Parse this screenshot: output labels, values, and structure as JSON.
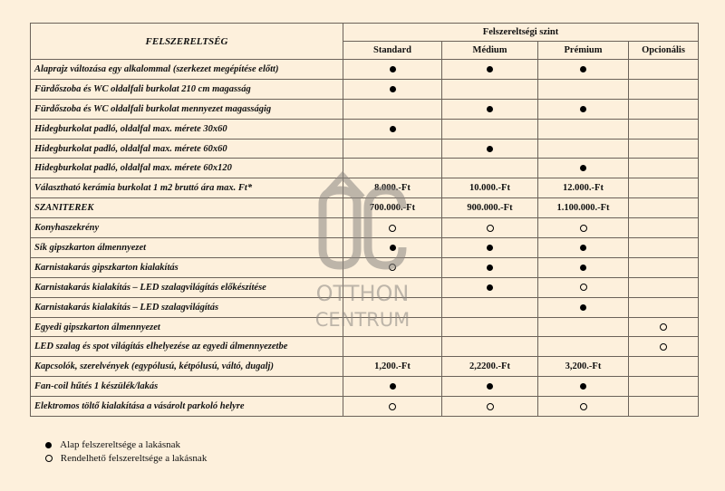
{
  "header": {
    "feature_col": "FELSZERELTSÉG",
    "group": "Felszereltségi szint",
    "levels": [
      "Standard",
      "Médium",
      "Prémium",
      "Opcionális"
    ]
  },
  "rows": [
    {
      "label": "Alaprajz változása egy alkalommal (szerkezet megépítése előtt)",
      "cells": [
        "filled",
        "filled",
        "filled",
        ""
      ]
    },
    {
      "label": "Fürdőszoba és WC oldalfali burkolat 210 cm magasság",
      "cells": [
        "filled",
        "",
        "",
        ""
      ]
    },
    {
      "label": "Fürdőszoba és WC oldalfali burkolat mennyezet magasságig",
      "cells": [
        "",
        "filled",
        "filled",
        ""
      ]
    },
    {
      "label": "Hidegburkolat  padló, oldalfal max. mérete 30x60",
      "cells": [
        "filled",
        "",
        "",
        ""
      ]
    },
    {
      "label": "Hidegburkolat  padló, oldalfal  max. mérete 60x60",
      "cells": [
        "",
        "filled",
        "",
        ""
      ]
    },
    {
      "label": "Hidegburkolat  padló, oldalfal max. mérete 60x120",
      "cells": [
        "",
        "",
        "filled",
        ""
      ]
    },
    {
      "label": "Választható kerámia burkolat 1 m2 bruttó ára max. Ft*",
      "cells": [
        "8.000.-Ft",
        "10.000.-Ft",
        "12.000.-Ft",
        ""
      ]
    },
    {
      "label": "SZANITEREK",
      "cells": [
        "700.000.-Ft",
        "900.000.-Ft",
        "1.100.000.-Ft",
        ""
      ]
    },
    {
      "label": "Konyhaszekrény",
      "cells": [
        "open",
        "open",
        "open",
        ""
      ]
    },
    {
      "label": "Sík gipszkarton álmennyezet",
      "cells": [
        "filled",
        "filled",
        "filled",
        ""
      ]
    },
    {
      "label": "Karnistakarás gipszkarton kialakítás",
      "cells": [
        "open",
        "filled",
        "filled",
        ""
      ]
    },
    {
      "label": "Karnistakarás kialakítás – LED szalagvilágítás előkészítése",
      "cells": [
        "",
        "filled",
        "open",
        ""
      ]
    },
    {
      "label": "Karnistakarás kialakítás – LED szalagvilágítás",
      "cells": [
        "",
        "",
        "filled",
        ""
      ]
    },
    {
      "label": "Egyedi gipszkarton álmennyezet",
      "cells": [
        "",
        "",
        "",
        "open"
      ]
    },
    {
      "label": "LED szalag és spot világítás elhelyezése az egyedi álmennyezetbe",
      "cells": [
        "",
        "",
        "",
        "open"
      ]
    },
    {
      "label": "Kapcsolók, szerelvények (egypólusú, kétpólusú, váltó, dugalj)",
      "cells": [
        "1,200.-Ft",
        "2,2200.-Ft",
        "3,200.-Ft",
        ""
      ]
    },
    {
      "label": "Fan-coil hűtés 1 készülék/lakás",
      "cells": [
        "filled",
        "filled",
        "filled",
        ""
      ]
    },
    {
      "label": "Elektromos töltő kialakítása a vásárolt parkoló helyre",
      "cells": [
        "open",
        "open",
        "open",
        ""
      ]
    }
  ],
  "legend": [
    {
      "marker": "filled",
      "text": "Alap felszereltsége a lakásnak"
    },
    {
      "marker": "open",
      "text": "Rendelhető felszereltsége a lakásnak"
    }
  ],
  "watermark": {
    "line1": "OTTHON",
    "line2": "CENTRUM",
    "monogram": "OC",
    "color": "#8a8580"
  }
}
